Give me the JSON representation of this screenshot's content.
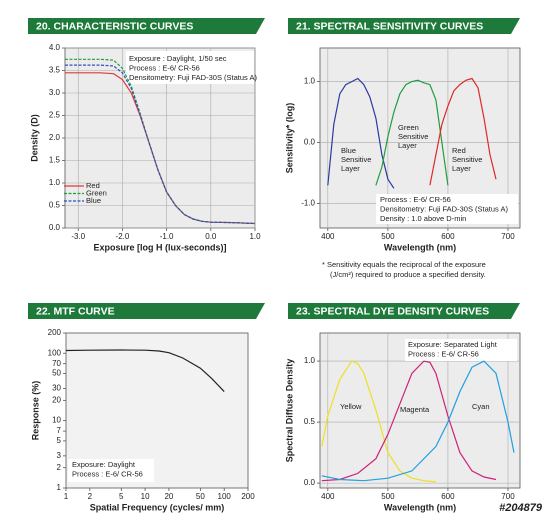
{
  "code": "#204879",
  "chart_data": [
    {
      "type": "line",
      "title": "20. CHARACTERISTIC CURVES",
      "xlabel": "Exposure [log H (lux-seconds)]",
      "ylabel": "Density (D)",
      "xlim": [
        -3.3,
        1.0
      ],
      "ylim": [
        0,
        4.0
      ],
      "xticks": [
        {
          "value": -3,
          "label": "-3.0"
        },
        {
          "value": -2,
          "label": "-2.0"
        },
        {
          "value": -1,
          "label": "-1.0"
        },
        {
          "value": 0,
          "label": "0.0"
        },
        {
          "value": 1,
          "label": "1.0"
        }
      ],
      "yticks": [
        {
          "value": 0,
          "label": "0.0"
        },
        0.5,
        {
          "value": 1,
          "label": "1.0"
        },
        1.5,
        {
          "value": 2,
          "label": "2.0"
        },
        2.5,
        {
          "value": 3,
          "label": "3.0"
        },
        3.5,
        {
          "value": 4,
          "label": "4.0"
        }
      ],
      "grid": true,
      "legend": "lower left",
      "annotations": [
        "Exposure    : Daylight, 1/50 sec",
        "Process       : E-6/ CR-56",
        "Densitometry: Fuji FAD-30S (Status A)"
      ],
      "series": [
        {
          "name": "Red",
          "color": "#e03a3a",
          "dashed": false,
          "x": [
            -3.3,
            -2.5,
            -2.2,
            -2.0,
            -1.8,
            -1.6,
            -1.4,
            -1.2,
            -1.0,
            -0.8,
            -0.6,
            -0.4,
            -0.2,
            0,
            0.5,
            1.0
          ],
          "values": [
            3.45,
            3.45,
            3.43,
            3.3,
            3.0,
            2.5,
            1.9,
            1.3,
            0.8,
            0.5,
            0.3,
            0.2,
            0.15,
            0.13,
            0.12,
            0.1
          ]
        },
        {
          "name": "Green",
          "color": "#1f9e3e",
          "dashed": true,
          "x": [
            -3.3,
            -2.5,
            -2.2,
            -2.0,
            -1.8,
            -1.6,
            -1.4,
            -1.2,
            -1.0,
            -0.8,
            -0.6,
            -0.4,
            -0.2,
            0,
            0.5,
            1.0
          ],
          "values": [
            3.75,
            3.75,
            3.73,
            3.55,
            3.15,
            2.55,
            1.9,
            1.3,
            0.8,
            0.5,
            0.3,
            0.2,
            0.15,
            0.13,
            0.12,
            0.1
          ]
        },
        {
          "name": "Blue",
          "color": "#2f4fc0",
          "dashed": true,
          "x": [
            -3.3,
            -2.5,
            -2.2,
            -2.0,
            -1.8,
            -1.6,
            -1.4,
            -1.2,
            -1.0,
            -0.8,
            -0.6,
            -0.4,
            -0.2,
            0,
            0.5,
            1.0
          ],
          "values": [
            3.62,
            3.62,
            3.6,
            3.45,
            3.1,
            2.52,
            1.9,
            1.3,
            0.8,
            0.5,
            0.3,
            0.2,
            0.15,
            0.13,
            0.12,
            0.1
          ]
        }
      ]
    },
    {
      "type": "line",
      "title": "21. SPECTRAL SENSITIVITY CURVES",
      "xlabel": "Wavelength (nm)",
      "ylabel": "Sensitivity* (log)",
      "xlim": [
        387,
        720
      ],
      "ylim": [
        -1.4,
        1.55
      ],
      "xticks": [
        400,
        500,
        600,
        700
      ],
      "yticks": [
        {
          "value": -1,
          "label": "-1.0"
        },
        {
          "value": 0,
          "label": "0.0"
        },
        {
          "value": 1,
          "label": "1.0"
        }
      ],
      "grid": true,
      "annotations": [
        "Process        : E-6/ CR-56",
        "Densitometry: Fuji FAD-30S (Status A)",
        "Density        : 1.0 above D-min"
      ],
      "footnote": [
        "*  Sensitivity equals the reciprocal of the exposure",
        "(J/cm²) required to produce a specified density."
      ],
      "series": [
        {
          "label": [
            "Blue",
            "Sensitive",
            "Layer"
          ],
          "color": "#2a3aa0",
          "x": [
            400,
            410,
            420,
            430,
            440,
            450,
            460,
            470,
            480,
            490,
            500,
            510
          ],
          "values": [
            -0.7,
            0.3,
            0.8,
            0.95,
            1.0,
            1.05,
            0.95,
            0.75,
            0.4,
            -0.2,
            -0.6,
            -0.75
          ]
        },
        {
          "label": [
            "Green",
            "Sensitive",
            "Layer"
          ],
          "color": "#1f9e3e",
          "x": [
            480,
            490,
            500,
            510,
            520,
            530,
            540,
            550,
            560,
            570,
            580,
            590,
            600
          ],
          "values": [
            -0.7,
            -0.4,
            0.1,
            0.5,
            0.8,
            0.95,
            1.0,
            1.02,
            0.98,
            0.95,
            0.7,
            0.0,
            -0.7
          ]
        },
        {
          "label": [
            "Red",
            "Sensitive",
            "Layer"
          ],
          "color": "#e02828",
          "x": [
            570,
            580,
            590,
            600,
            610,
            620,
            630,
            640,
            650,
            660,
            670,
            680
          ],
          "values": [
            -0.7,
            -0.2,
            0.3,
            0.6,
            0.85,
            0.95,
            1.02,
            1.05,
            0.9,
            0.4,
            -0.2,
            -0.6
          ]
        }
      ]
    },
    {
      "type": "line",
      "title": "22. MTF CURVE",
      "xlabel": "Spatial Frequency (cycles/ mm)",
      "ylabel": "Response (%)",
      "xlim": [
        1,
        200
      ],
      "ylim": [
        1,
        200
      ],
      "xlog": true,
      "ylog": true,
      "xticks": [
        1,
        2,
        5,
        10,
        20,
        50,
        100,
        200
      ],
      "yticks": [
        1,
        2,
        3,
        5,
        7,
        10,
        20,
        30,
        50,
        70,
        100,
        200
      ],
      "grid": false,
      "annotations": [
        "Exposure: Daylight",
        "Process  : E-6/ CR-56"
      ],
      "series": [
        {
          "color": "#222222",
          "x": [
            1,
            2,
            5,
            10,
            15,
            20,
            30,
            50,
            70,
            100
          ],
          "values": [
            110,
            111,
            112,
            111,
            108,
            102,
            85,
            60,
            42,
            27
          ]
        }
      ]
    },
    {
      "type": "line",
      "title": "23. SPECTRAL DYE DENSITY CURVES",
      "xlabel": "Wavelength (nm)",
      "ylabel": "Spectral Diffuse Density",
      "xlim": [
        387,
        720
      ],
      "ylim": [
        -0.04,
        1.23
      ],
      "xticks": [
        400,
        500,
        600,
        700
      ],
      "yticks": [
        {
          "value": 0,
          "label": "0.0"
        },
        0.5,
        {
          "value": 1,
          "label": "1.0"
        }
      ],
      "grid": true,
      "annotations": [
        "Exposure: Separated Light",
        "Process  : E-6/ CR-56"
      ],
      "series": [
        {
          "label": [
            "Yellow"
          ],
          "color": "#eee020",
          "x": [
            390,
            400,
            420,
            440,
            450,
            460,
            480,
            500,
            520,
            540,
            560,
            580
          ],
          "values": [
            0.3,
            0.55,
            0.85,
            1.0,
            0.98,
            0.9,
            0.6,
            0.25,
            0.1,
            0.04,
            0.02,
            0.01
          ]
        },
        {
          "label": [
            "Magenta"
          ],
          "color": "#d0207a",
          "x": [
            390,
            420,
            450,
            480,
            500,
            520,
            540,
            560,
            570,
            580,
            600,
            620,
            640,
            660,
            680
          ],
          "values": [
            0.02,
            0.03,
            0.08,
            0.2,
            0.4,
            0.65,
            0.9,
            1.0,
            0.99,
            0.9,
            0.55,
            0.25,
            0.1,
            0.05,
            0.03
          ]
        },
        {
          "label": [
            "Cyan"
          ],
          "color": "#1fa0e0",
          "x": [
            390,
            420,
            460,
            500,
            540,
            580,
            600,
            620,
            640,
            660,
            680,
            700,
            710
          ],
          "values": [
            0.06,
            0.03,
            0.02,
            0.04,
            0.1,
            0.3,
            0.5,
            0.75,
            0.95,
            1.0,
            0.9,
            0.5,
            0.25
          ]
        }
      ]
    }
  ]
}
